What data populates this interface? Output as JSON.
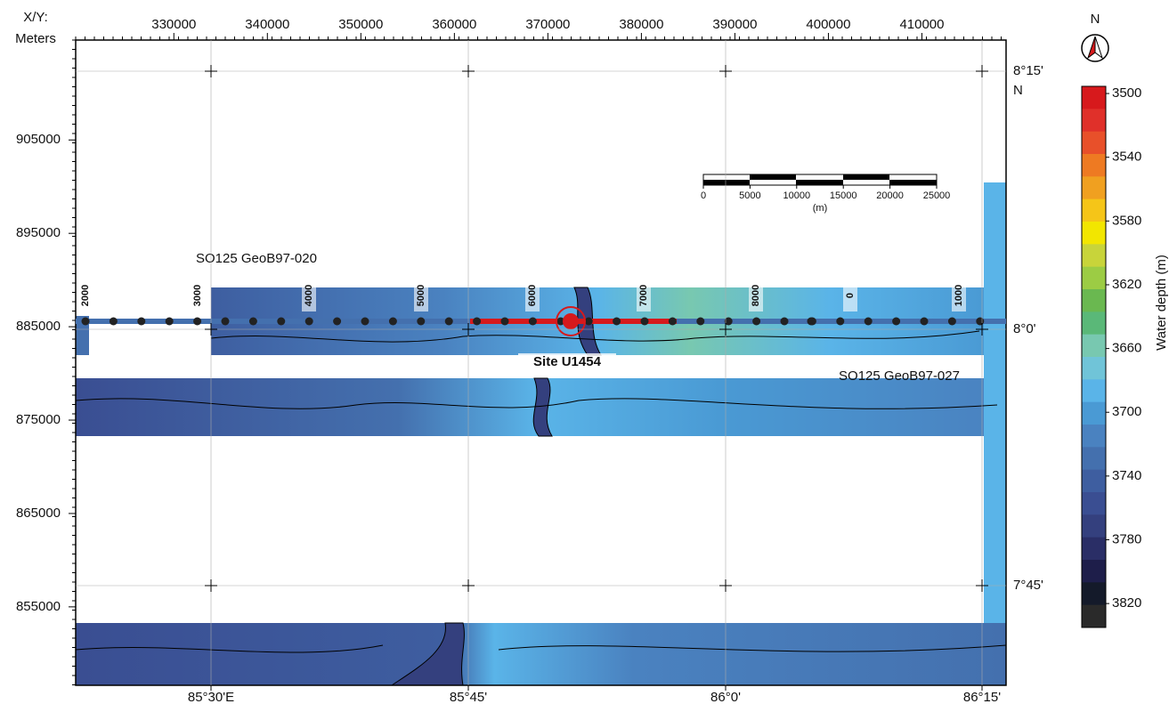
{
  "axes": {
    "corner_label": "X/Y:",
    "corner_unit": "Meters",
    "x_ticks": [
      330000,
      340000,
      350000,
      360000,
      370000,
      380000,
      390000,
      400000,
      410000
    ],
    "xlim": [
      319500,
      419000
    ],
    "y_ticks": [
      905000,
      895000,
      885000,
      875000,
      865000,
      855000
    ],
    "ylim": [
      846600,
      915700
    ],
    "lon_labels": [
      "85°30'E",
      "85°45'",
      "86°0'",
      "86°15'"
    ],
    "lat_labels": [
      "8°15'",
      "8°0'",
      "7°45'"
    ],
    "lat_hemisphere": "N"
  },
  "north_arrow": "N",
  "colorbar": {
    "title": "Water depth (m)",
    "ticks": [
      3500,
      3540,
      3580,
      3620,
      3660,
      3700,
      3740,
      3780,
      3820
    ],
    "lim": [
      3495.5,
      3835
    ],
    "colors": [
      "#d7191c",
      "#e0302a",
      "#e8502a",
      "#ee7a22",
      "#f0a020",
      "#f5c518",
      "#f2e600",
      "#c8d43a",
      "#9ccc44",
      "#6ab850",
      "#5ab878",
      "#78c8b0",
      "#70c4d8",
      "#5ab4e8",
      "#4a9ad4",
      "#4a82c0",
      "#4470ae",
      "#3e5ea0",
      "#3a4e92",
      "#34407e",
      "#2a2e66",
      "#1e1e4a",
      "#141a2a",
      "#2a2a2a"
    ]
  },
  "scale_bar": {
    "ticks": [
      0,
      5000,
      10000,
      15000,
      20000,
      25000
    ],
    "unit": "(m)"
  },
  "profiles": [
    {
      "label": "SO125 GeoB97-020"
    },
    {
      "label": "SO125 GeoB97-027"
    }
  ],
  "shot_points": [
    "2000",
    "3000",
    "4000",
    "5000",
    "6000",
    "7000",
    "8000",
    "0",
    "1000"
  ],
  "site": "Site U1454"
}
